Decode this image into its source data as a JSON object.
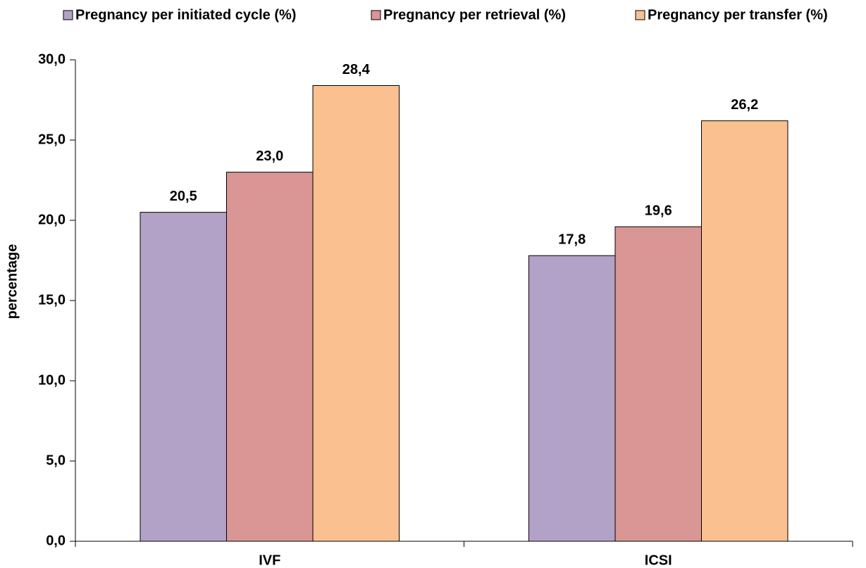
{
  "chart_data": {
    "type": "bar",
    "y_label": "percentage",
    "categories": [
      "IVF",
      "ICSI"
    ],
    "series": [
      {
        "name": "Pregnancy per initiated cycle (%)",
        "color": "#b3a2c7",
        "values": [
          20.5,
          17.8
        ],
        "value_labels": [
          "20,5",
          "17,8"
        ]
      },
      {
        "name": "Pregnancy per retrieval (%)",
        "color": "#d99694",
        "values": [
          23.0,
          19.6
        ],
        "value_labels": [
          "23,0",
          "19,6"
        ]
      },
      {
        "name": "Pregnancy per transfer (%)",
        "color": "#fac090",
        "values": [
          28.4,
          26.2
        ],
        "value_labels": [
          "28,4",
          "26,2"
        ]
      }
    ],
    "ylim": [
      0,
      30
    ],
    "yticks": [
      {
        "value": 0,
        "label": "0,0"
      },
      {
        "value": 5,
        "label": "5,0"
      },
      {
        "value": 10,
        "label": "10,0"
      },
      {
        "value": 15,
        "label": "15,0"
      },
      {
        "value": 20,
        "label": "20,0"
      },
      {
        "value": 25,
        "label": "25,0"
      },
      {
        "value": 30,
        "label": "30,0"
      }
    ],
    "legend": "top",
    "grid": false
  }
}
